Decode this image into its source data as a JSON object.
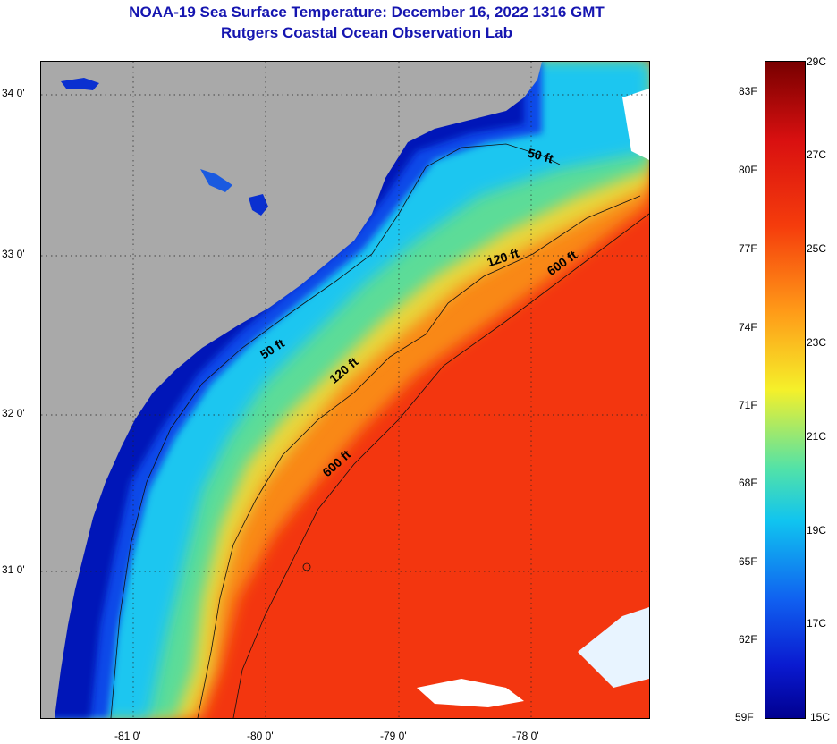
{
  "title": {
    "line1": "NOAA-19 Sea Surface Temperature:  December 16, 2022 1316 GMT",
    "line2": "Rutgers Coastal Ocean Observation Lab"
  },
  "map": {
    "lat_labels": [
      "34 0'",
      "33 0'",
      "32 0'",
      "31 0'"
    ],
    "lon_labels": [
      "-81 0'",
      "-80 0'",
      "-79 0'",
      "-78 0'"
    ],
    "contour_labels": [
      "50 ft",
      "120 ft",
      "600 ft",
      "50 ft",
      "120 ft",
      "600 ft"
    ]
  },
  "colorbar": {
    "fahrenheit_labels": [
      "83F",
      "80F",
      "77F",
      "74F",
      "71F",
      "68F",
      "65F",
      "62F",
      "59F"
    ],
    "celsius_labels": [
      "29C",
      "27C",
      "25C",
      "23C",
      "21C",
      "19C",
      "17C",
      "15C"
    ]
  },
  "colors": {
    "title": "#1515b0",
    "land": "#a9a9a9",
    "cloud": "#ffffff",
    "warm_water": "#f02e10",
    "cool_water": "#0a2ad8"
  }
}
